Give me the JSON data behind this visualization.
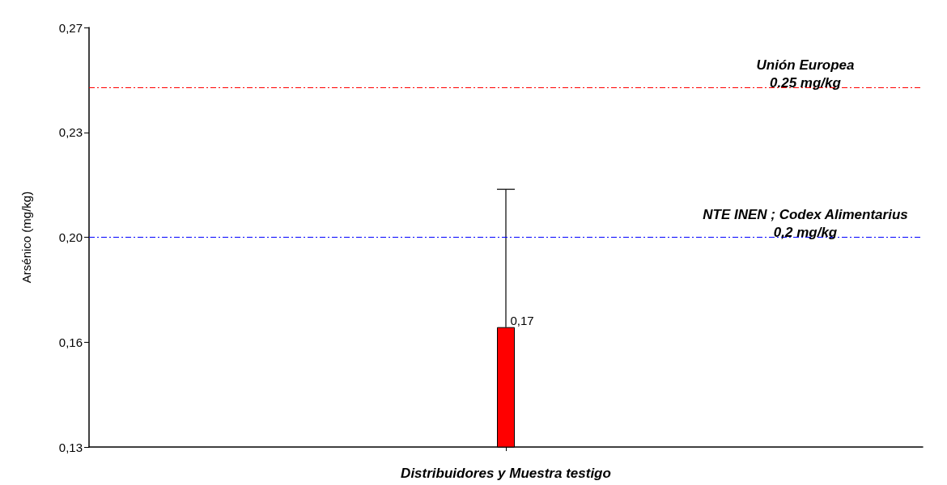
{
  "chart_data": {
    "type": "bar",
    "xlabel": "Distribuidores y Muestra testigo",
    "ylabel": "Arsénico (mg/kg)",
    "categories": [
      null
    ],
    "series": [
      {
        "color": "#ff0000",
        "values": [
          0.17
        ],
        "errors": [
          [
            0.17,
            0.216
          ]
        ],
        "value_labels": [
          "0,17"
        ]
      }
    ],
    "ylim": [
      0.13,
      0.27
    ],
    "yticks": [
      {
        "value": 0.13,
        "label": "0,13"
      },
      {
        "value": 0.165,
        "label": "0,16"
      },
      {
        "value": 0.2,
        "label": "0,20"
      },
      {
        "value": 0.235,
        "label": "0,23"
      },
      {
        "value": 0.27,
        "label": "0,27"
      }
    ],
    "ref_lines": [
      {
        "axis": "y",
        "value": 0.25,
        "label": "Unión Europea\n0.25 mg/kg",
        "color": "#ff0000",
        "line_style": "dashed"
      },
      {
        "axis": "y",
        "value": 0.2,
        "label": "NTE INEN ; Codex Alimentarius\n0,2 mg/kg",
        "color": "#0000ff",
        "line_style": "dashed"
      }
    ],
    "grid": false
  }
}
